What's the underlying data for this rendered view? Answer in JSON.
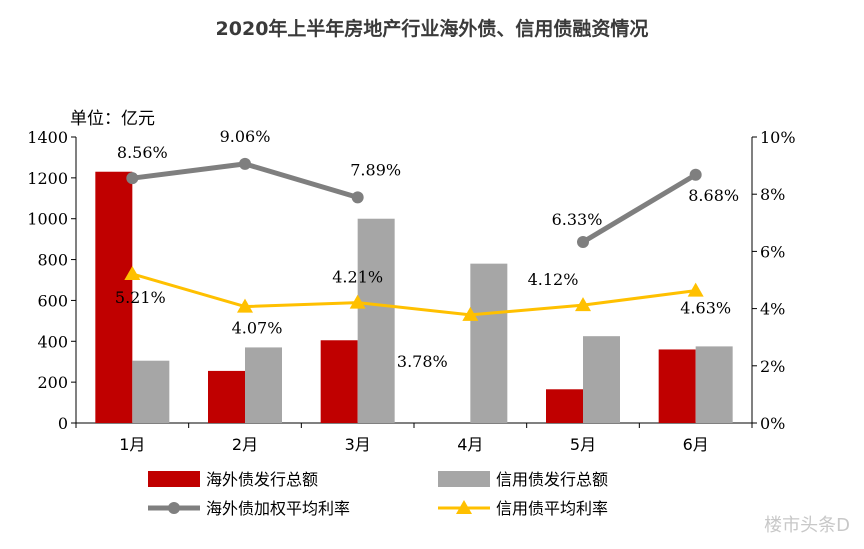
{
  "chart_data": {
    "type": "bar",
    "title": "2020年上半年房地产行业海外债、信用债融资情况",
    "unit_label": "单位：亿元",
    "categories": [
      "1月",
      "2月",
      "3月",
      "4月",
      "5月",
      "6月"
    ],
    "y_left": {
      "min": 0,
      "max": 1400,
      "ticks": [
        "0",
        "200",
        "400",
        "600",
        "800",
        "1000",
        "1200",
        "1400"
      ]
    },
    "y_right": {
      "min": 0,
      "max": 10,
      "ticks": [
        "0%",
        "2%",
        "4%",
        "6%",
        "8%",
        "10%"
      ]
    },
    "series": [
      {
        "name": "海外债发行总额",
        "kind": "bar",
        "axis": "left",
        "color": "#c00000",
        "values": [
          1230,
          255,
          405,
          null,
          165,
          360
        ]
      },
      {
        "name": "信用债发行总额",
        "kind": "bar",
        "axis": "left",
        "color": "#a6a6a6",
        "values": [
          305,
          370,
          1000,
          780,
          425,
          375
        ]
      },
      {
        "name": "海外债加权平均利率",
        "kind": "line",
        "axis": "right",
        "color": "#7f7f7f",
        "marker": "circle",
        "values": [
          8.56,
          9.06,
          7.89,
          null,
          6.33,
          8.68
        ],
        "labels": [
          "8.56%",
          "9.06%",
          "7.89%",
          "",
          "6.33%",
          "8.68%"
        ]
      },
      {
        "name": "信用债平均利率",
        "kind": "line",
        "axis": "right",
        "color": "#ffc000",
        "marker": "triangle",
        "values": [
          5.21,
          4.07,
          4.21,
          3.78,
          4.12,
          4.63
        ],
        "labels": [
          "5.21%",
          "4.07%",
          "4.21%",
          "3.78%",
          "4.12%",
          "4.63%"
        ]
      }
    ],
    "legend_position": "bottom",
    "grid": false
  },
  "watermark": "楼市头条D"
}
